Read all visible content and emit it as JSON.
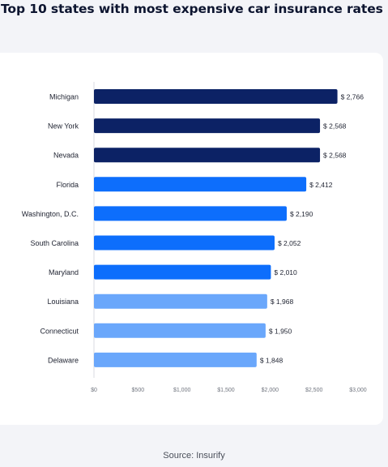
{
  "title": "Top 10 states with most expensive car insurance rates",
  "source": "Source: Insurify",
  "colors": {
    "dark": "#0c2265",
    "medium": "#0d6efc",
    "light": "#6aa7fb",
    "text": "#1e2230",
    "tick": "#70757f",
    "baseline": "#d8dbe2"
  },
  "chart_data": {
    "type": "bar",
    "orientation": "horizontal",
    "categories": [
      "Michigan",
      "New York",
      "Nevada",
      "Florida",
      "Washington, D.C.",
      "South Carolina",
      "Maryland",
      "Louisiana",
      "Connecticut",
      "Delaware"
    ],
    "values": [
      2766,
      2568,
      2568,
      2412,
      2190,
      2052,
      2010,
      1968,
      1950,
      1848
    ],
    "value_labels": [
      "$ 2,766",
      "$ 2,568",
      "$ 2,568",
      "$ 2,412",
      "$ 2,190",
      "$ 2,052",
      "$ 2,010",
      "$ 1,968",
      "$ 1,950",
      "$ 1,848"
    ],
    "bar_tiers": [
      "dark",
      "dark",
      "dark",
      "medium",
      "medium",
      "medium",
      "medium",
      "light",
      "light",
      "light"
    ],
    "xlim": [
      0,
      3000
    ],
    "xticks": [
      0,
      500,
      1000,
      1500,
      2000,
      2500,
      3000
    ],
    "xtick_labels": [
      "$0",
      "$500",
      "$1,000",
      "$1,500",
      "$2,000",
      "$2,500",
      "$3,000"
    ],
    "grid": false
  }
}
